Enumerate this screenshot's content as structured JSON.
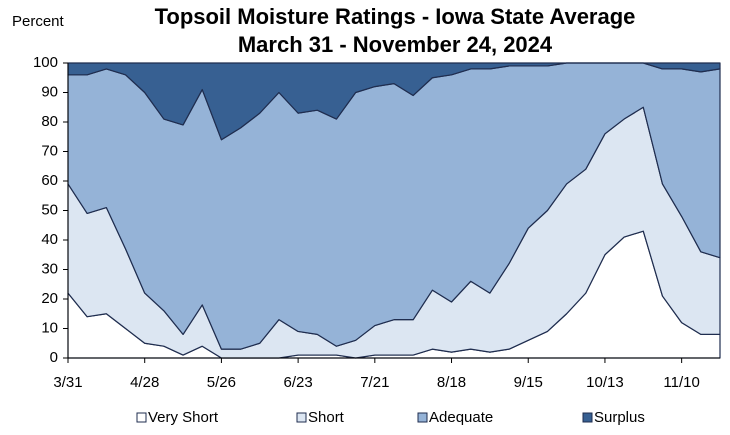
{
  "chart_data": {
    "type": "stacked_area",
    "title": "Topsoil Moisture Ratings - Iowa State Average",
    "subtitle": "March 31 - November 24, 2024",
    "y_label": "Percent",
    "categories": [
      "3/31",
      null,
      null,
      null,
      "4/28",
      null,
      null,
      null,
      "5/26",
      null,
      null,
      null,
      "6/23",
      null,
      null,
      null,
      "7/21",
      null,
      null,
      null,
      "8/18",
      null,
      null,
      null,
      "9/15",
      null,
      null,
      null,
      "10/13",
      null,
      null,
      null,
      "11/10",
      null,
      null
    ],
    "series": [
      {
        "name": "Very Short",
        "color": "#ffffff",
        "values": [
          22,
          14,
          15,
          10,
          5,
          4,
          1,
          4,
          0,
          0,
          0,
          0,
          1,
          1,
          1,
          0,
          1,
          1,
          1,
          3,
          2,
          3,
          2,
          3,
          6,
          9,
          15,
          22,
          35,
          41,
          43,
          21,
          12,
          8,
          8
        ]
      },
      {
        "name": "Short",
        "color": "#dce6f2",
        "values": [
          37,
          35,
          36,
          27,
          17,
          12,
          7,
          14,
          3,
          3,
          5,
          13,
          8,
          7,
          3,
          6,
          10,
          12,
          12,
          20,
          17,
          23,
          20,
          29,
          38,
          41,
          44,
          42,
          41,
          40,
          42,
          38,
          36,
          28,
          26
        ]
      },
      {
        "name": "Adequate",
        "color": "#95b3d7",
        "values": [
          37,
          47,
          47,
          59,
          68,
          65,
          71,
          73,
          71,
          75,
          78,
          77,
          74,
          76,
          77,
          84,
          81,
          80,
          76,
          72,
          77,
          72,
          76,
          67,
          55,
          49,
          41,
          36,
          24,
          19,
          15,
          39,
          50,
          61,
          64
        ]
      },
      {
        "name": "Surplus",
        "color": "#376092",
        "values": [
          4,
          4,
          2,
          4,
          10,
          19,
          21,
          9,
          26,
          22,
          17,
          10,
          17,
          16,
          19,
          10,
          8,
          7,
          11,
          5,
          4,
          2,
          2,
          1,
          1,
          1,
          0,
          0,
          0,
          0,
          0,
          2,
          2,
          3,
          2
        ]
      }
    ],
    "ylim": [
      0,
      100
    ],
    "yticks": [
      0,
      10,
      20,
      30,
      40,
      50,
      60,
      70,
      80,
      90,
      100
    ],
    "grid": false
  }
}
